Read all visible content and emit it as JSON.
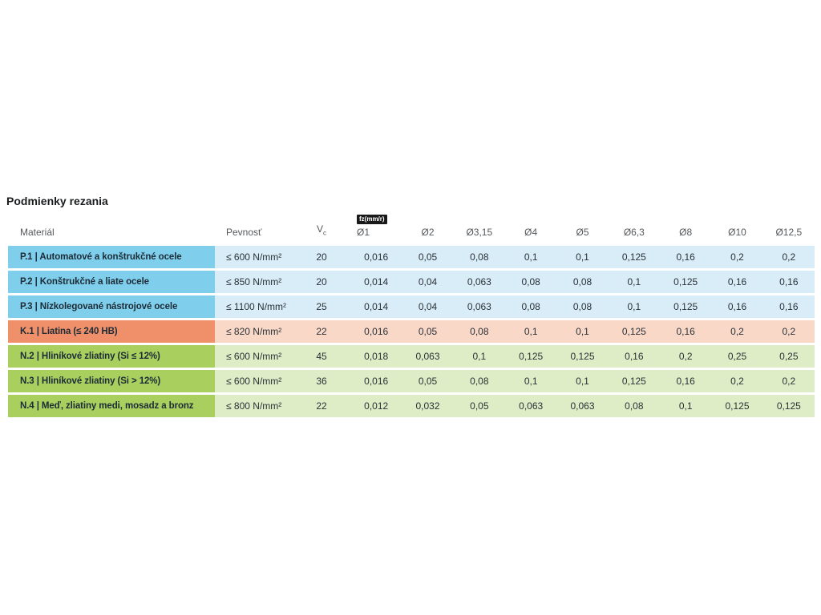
{
  "title": "Podmienky rezania",
  "chart_data": {
    "type": "table",
    "title": "Podmienky rezania",
    "header": {
      "material": "Materiál",
      "strength": "Pevnosť",
      "vc_main": "V",
      "vc_sub": "c",
      "fz_badge": "fz(mm/r)",
      "diameters": [
        "Ø1",
        "Ø2",
        "Ø3,15",
        "Ø4",
        "Ø5",
        "Ø6,3",
        "Ø8",
        "Ø10",
        "Ø12,5"
      ]
    },
    "rows": [
      {
        "group": "steel",
        "material": "P.1 | Automatové a konštrukčné ocele",
        "strength": "≤ 600 N/mm²",
        "vc": "20",
        "fz": [
          "0,016",
          "0,05",
          "0,08",
          "0,1",
          "0,1",
          "0,125",
          "0,16",
          "0,2",
          "0,2"
        ]
      },
      {
        "group": "steel",
        "material": "P.2 | Konštrukčné a liate ocele",
        "strength": "≤ 850 N/mm²",
        "vc": "20",
        "fz": [
          "0,014",
          "0,04",
          "0,063",
          "0,08",
          "0,08",
          "0,1",
          "0,125",
          "0,16",
          "0,16"
        ]
      },
      {
        "group": "steel",
        "material": "P.3 | Nízkolegované nástrojové ocele",
        "strength": "≤ 1100 N/mm²",
        "vc": "25",
        "fz": [
          "0,014",
          "0,04",
          "0,063",
          "0,08",
          "0,08",
          "0,1",
          "0,125",
          "0,16",
          "0,16"
        ]
      },
      {
        "group": "cast-iron",
        "material": "K.1 | Liatina (≤ 240 HB)",
        "strength": "≤ 820 N/mm²",
        "vc": "22",
        "fz": [
          "0,016",
          "0,05",
          "0,08",
          "0,1",
          "0,1",
          "0,125",
          "0,16",
          "0,2",
          "0,2"
        ]
      },
      {
        "group": "aluminium",
        "material": "N.2 | Hliníkové zliatiny (Si ≤ 12%)",
        "strength": "≤ 600 N/mm²",
        "vc": "45",
        "fz": [
          "0,018",
          "0,063",
          "0,1",
          "0,125",
          "0,125",
          "0,16",
          "0,2",
          "0,25",
          "0,25"
        ]
      },
      {
        "group": "aluminium",
        "material": "N.3 | Hliníkové zliatiny (Si > 12%)",
        "strength": "≤ 600 N/mm²",
        "vc": "36",
        "fz": [
          "0,016",
          "0,05",
          "0,08",
          "0,1",
          "0,1",
          "0,125",
          "0,16",
          "0,2",
          "0,2"
        ]
      },
      {
        "group": "aluminium",
        "material": "N.4 | Meď, zliatiny medi, mosadz a bronz",
        "strength": "≤ 800 N/mm²",
        "vc": "22",
        "fz": [
          "0,012",
          "0,032",
          "0,05",
          "0,063",
          "0,063",
          "0,08",
          "0,1",
          "0,125",
          "0,125"
        ]
      }
    ]
  },
  "colors": {
    "steel-dark": "#7FCFEC",
    "steel-light": "#D9EDF8",
    "cast-iron-dark": "#F0906B",
    "cast-iron-light": "#F9D8C8",
    "aluminium-dark": "#A9CF5F",
    "aluminium-light": "#DFEDC6",
    "badge-bg": "#191919",
    "badge-text": "#FFFFFF",
    "header-text": "#54585C",
    "title-text": "#1B1C1E",
    "material-text": "#1C2B36",
    "value-text": "#2B3137"
  }
}
